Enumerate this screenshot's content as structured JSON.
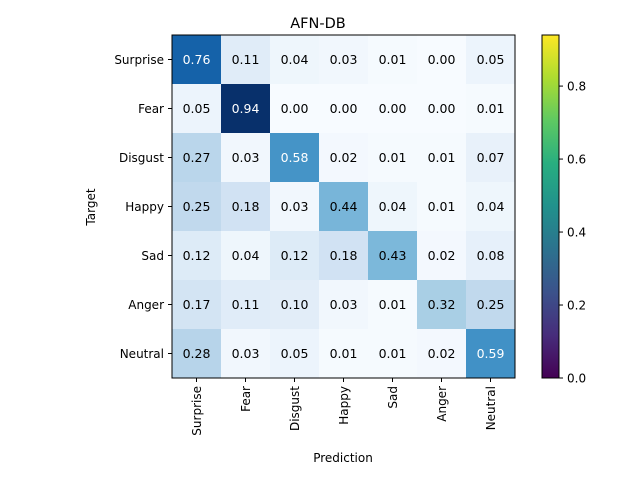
{
  "chart_data": {
    "type": "heatmap",
    "title": "AFN-DB",
    "xlabel": "Prediction",
    "ylabel": "Target",
    "x_categories": [
      "Surprise",
      "Fear",
      "Disgust",
      "Happy",
      "Sad",
      "Anger",
      "Neutral"
    ],
    "y_categories": [
      "Surprise",
      "Fear",
      "Disgust",
      "Happy",
      "Sad",
      "Anger",
      "Neutral"
    ],
    "matrix": [
      [
        0.76,
        0.11,
        0.04,
        0.03,
        0.01,
        0.0,
        0.05
      ],
      [
        0.05,
        0.94,
        0.0,
        0.0,
        0.0,
        0.0,
        0.01
      ],
      [
        0.27,
        0.03,
        0.58,
        0.02,
        0.01,
        0.01,
        0.07
      ],
      [
        0.25,
        0.18,
        0.03,
        0.44,
        0.04,
        0.01,
        0.04
      ],
      [
        0.12,
        0.04,
        0.12,
        0.18,
        0.43,
        0.02,
        0.08
      ],
      [
        0.17,
        0.11,
        0.1,
        0.03,
        0.01,
        0.32,
        0.25
      ],
      [
        0.28,
        0.03,
        0.05,
        0.01,
        0.01,
        0.02,
        0.59
      ]
    ],
    "cell_colormap": "Blues",
    "colorbar_colormap": "viridis",
    "colorbar_range": [
      0,
      0.94
    ],
    "colorbar_ticks": [
      "0.0",
      "0.2",
      "0.4",
      "0.6",
      "0.8"
    ],
    "colorbar_tick_values": [
      0.0,
      0.2,
      0.4,
      0.6,
      0.8
    ],
    "text_threshold": 0.5,
    "grid": false
  }
}
